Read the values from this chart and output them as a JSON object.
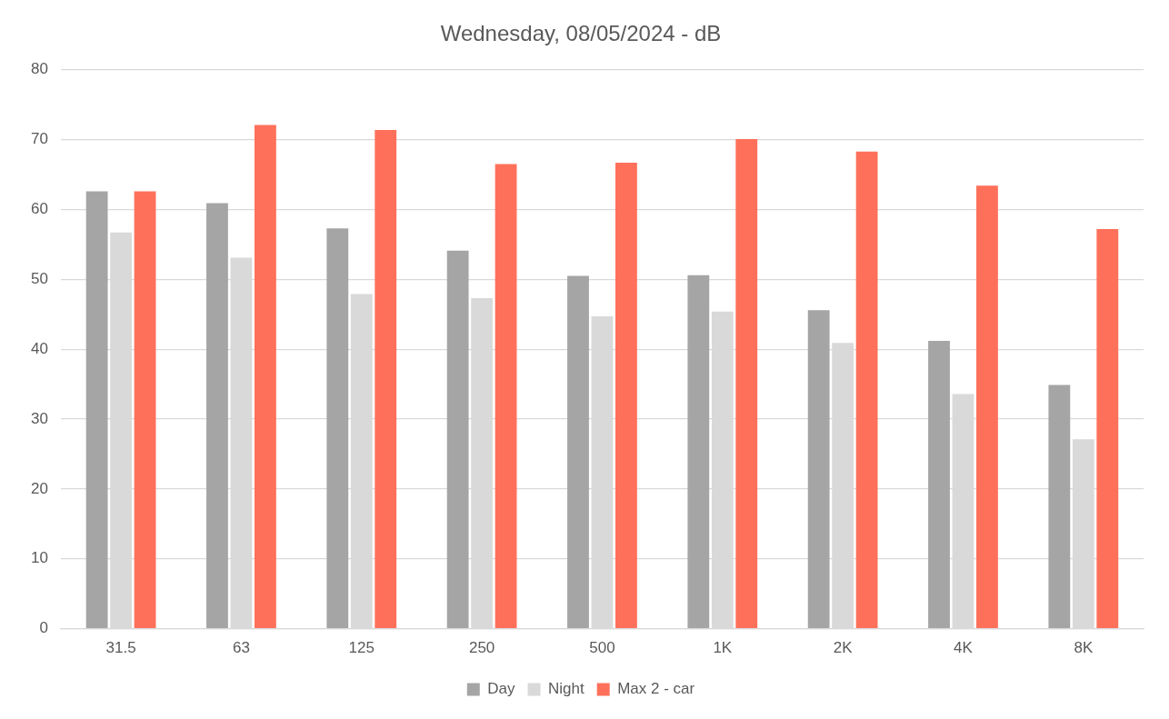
{
  "chart_data": {
    "type": "bar",
    "title": "Wednesday, 08/05/2024 - dB",
    "categories": [
      "31.5",
      "63",
      "125",
      "250",
      "500",
      "1K",
      "2K",
      "4K",
      "8K"
    ],
    "series": [
      {
        "name": "Day",
        "color": "#a5a5a5",
        "values": [
          62.6,
          60.9,
          57.3,
          54.1,
          50.5,
          50.6,
          45.6,
          41.2,
          34.9
        ]
      },
      {
        "name": "Night",
        "color": "#d9d9d9",
        "values": [
          56.7,
          53.1,
          47.9,
          47.3,
          44.7,
          45.4,
          40.9,
          33.6,
          27.1
        ]
      },
      {
        "name": "Max 2 - car",
        "color": "#ff705a",
        "values": [
          62.6,
          72.1,
          71.4,
          66.5,
          66.7,
          70.1,
          68.3,
          63.4,
          57.2
        ]
      }
    ],
    "ylim": [
      0,
      80
    ],
    "yticks": [
      0,
      10,
      20,
      30,
      40,
      50,
      60,
      70,
      80
    ],
    "grid": "y",
    "legend": "bottom"
  }
}
